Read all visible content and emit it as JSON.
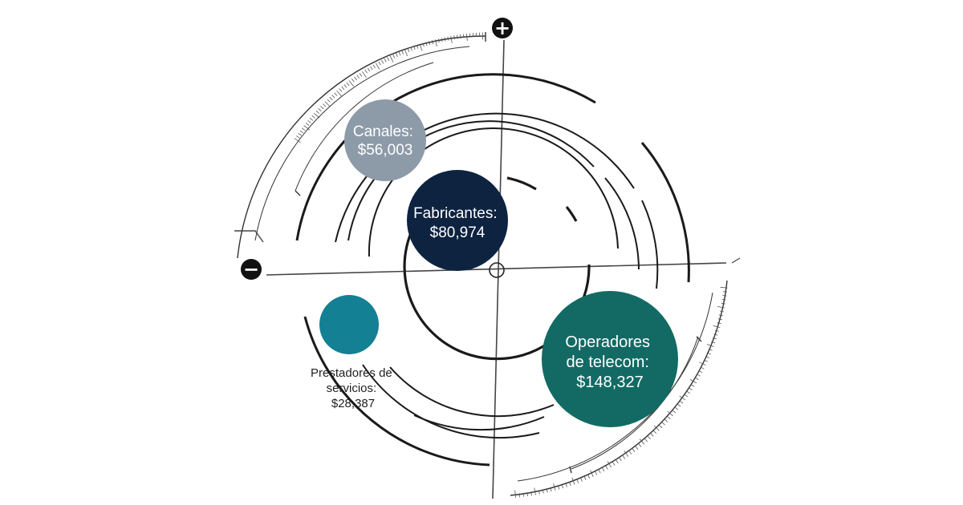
{
  "diagram": {
    "plus_symbol": "+",
    "minus_symbol": "−",
    "segments": [
      {
        "id": "fabricantes",
        "lines": [
          "Fabricantes:",
          "$80,974"
        ],
        "value": 80974,
        "color": "#0d2340",
        "text_color": "#ffffff"
      },
      {
        "id": "canales",
        "lines": [
          "Canales:",
          "$56,003"
        ],
        "value": 56003,
        "color": "#8d9aa8",
        "text_color": "#ffffff"
      },
      {
        "id": "operadores",
        "lines": [
          "Operadores",
          "de telecom:",
          "$148,327"
        ],
        "value": 148327,
        "color": "#136a64",
        "text_color": "#ffffff"
      },
      {
        "id": "prestadores",
        "lines": [
          "Prestadores de",
          "servicios:",
          "$28,387"
        ],
        "value": 28387,
        "color": "#138094",
        "text_color": "#1f1f1f"
      }
    ]
  }
}
